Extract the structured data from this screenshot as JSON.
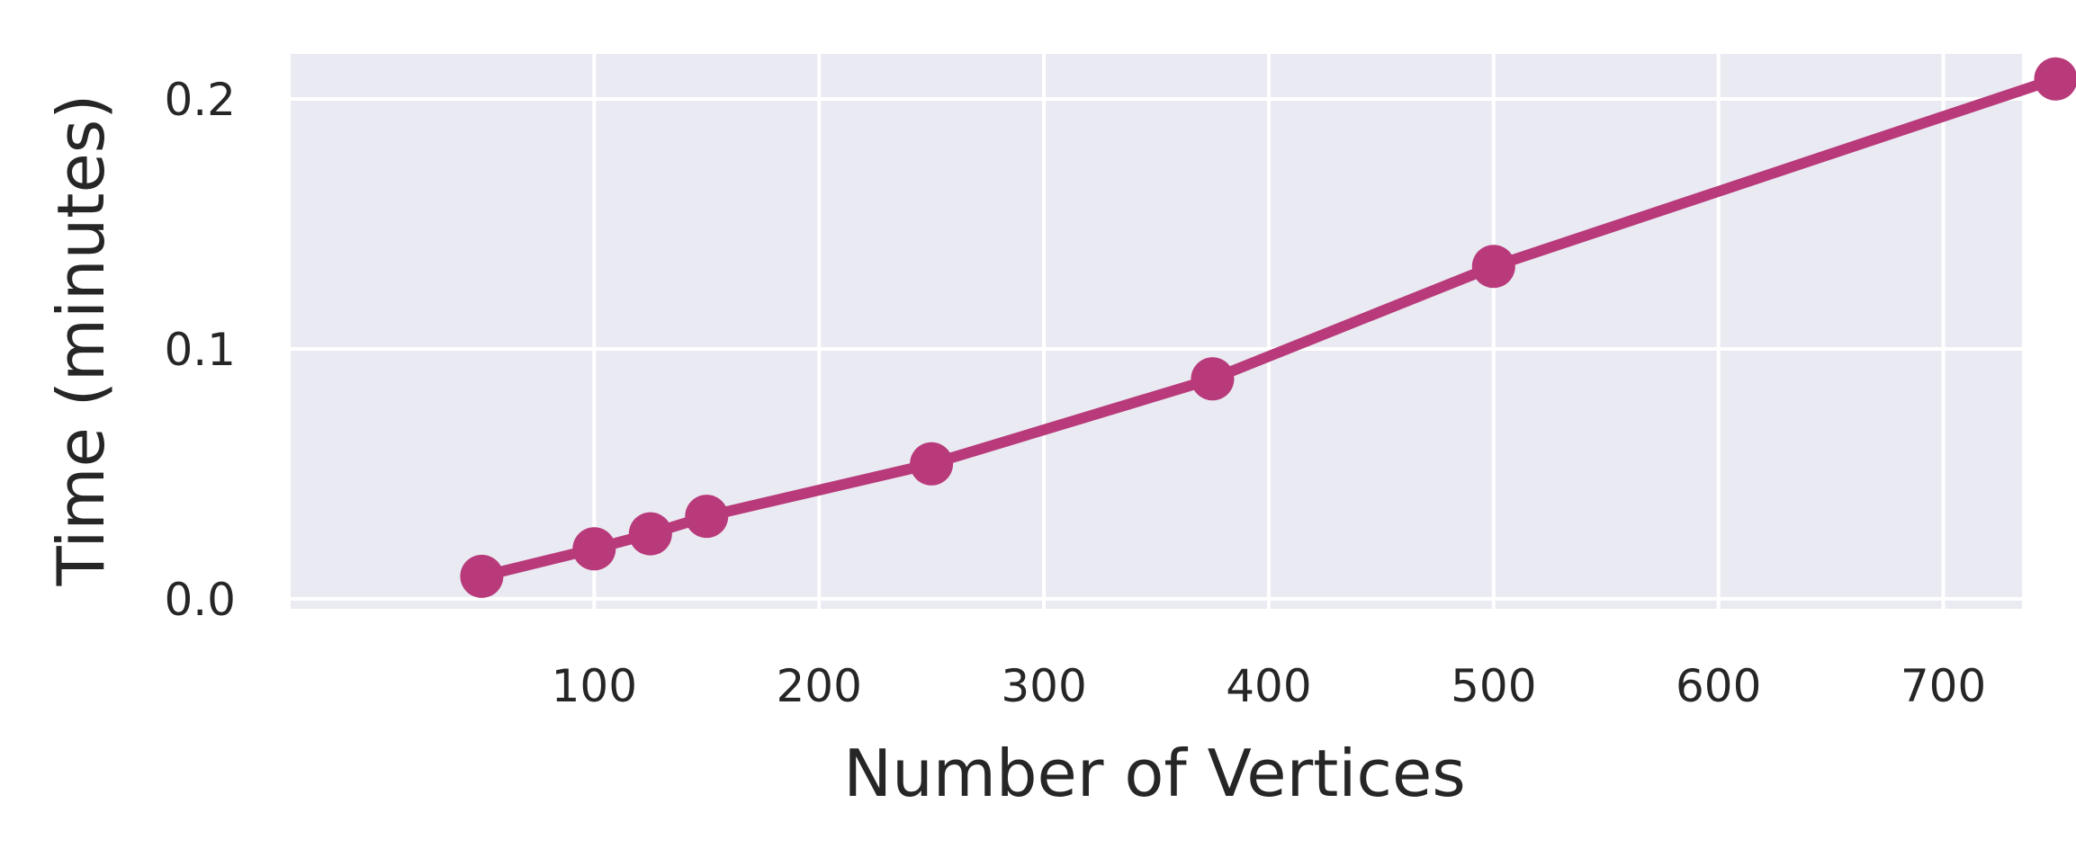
{
  "colors": {
    "plot_background": "#EAEAF2",
    "grid": "#FFFFFF",
    "series_line": "#B83A7A",
    "text": "#262626",
    "page_background": "#FFFFFF"
  },
  "chart_data": {
    "type": "line",
    "title": "",
    "xlabel": "Number of Vertices",
    "ylabel": "Time (minutes)",
    "xlim": [
      -35,
      735
    ],
    "ylim": [
      -0.004,
      0.218
    ],
    "xticks": [
      100,
      200,
      300,
      400,
      500,
      600,
      700
    ],
    "xtick_labels": [
      "100",
      "200",
      "300",
      "400",
      "500",
      "600",
      "700"
    ],
    "yticks": [
      0.0,
      0.1,
      0.2
    ],
    "ytick_labels": [
      "0.0",
      "0.1",
      "0.2"
    ],
    "grid": true,
    "series": [
      {
        "x": [
          50,
          100,
          125,
          150,
          250,
          375,
          500,
          750
        ],
        "y": [
          0.009,
          0.02,
          0.026,
          0.033,
          0.054,
          0.088,
          0.133,
          0.208
        ],
        "marker": "circle"
      }
    ]
  }
}
